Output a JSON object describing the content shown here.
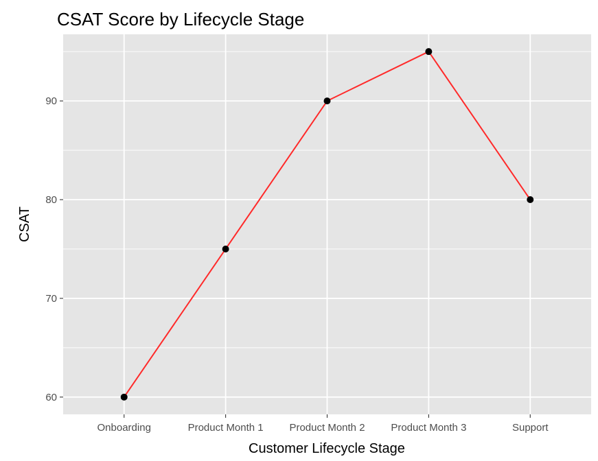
{
  "chart_data": {
    "type": "line",
    "title": "CSAT Score by Lifecycle Stage",
    "xlabel": "Customer Lifecycle Stage",
    "ylabel": "CSAT",
    "categories": [
      "Onboarding",
      "Product Month 1",
      "Product Month 2",
      "Product Month 3",
      "Support"
    ],
    "series": [
      {
        "values": [
          60,
          75,
          90,
          95,
          80
        ]
      }
    ],
    "ylim": [
      58.25,
      96.75
    ],
    "yticks": [
      60,
      70,
      80,
      90
    ],
    "yticks_minor": [
      65,
      75,
      85,
      95
    ],
    "grid": true,
    "colors": {
      "panel_background": "#e5e5e5",
      "grid": "#ffffff",
      "line": "#ff2a2a",
      "point": "#000000",
      "tick_mark": "#333333"
    }
  }
}
